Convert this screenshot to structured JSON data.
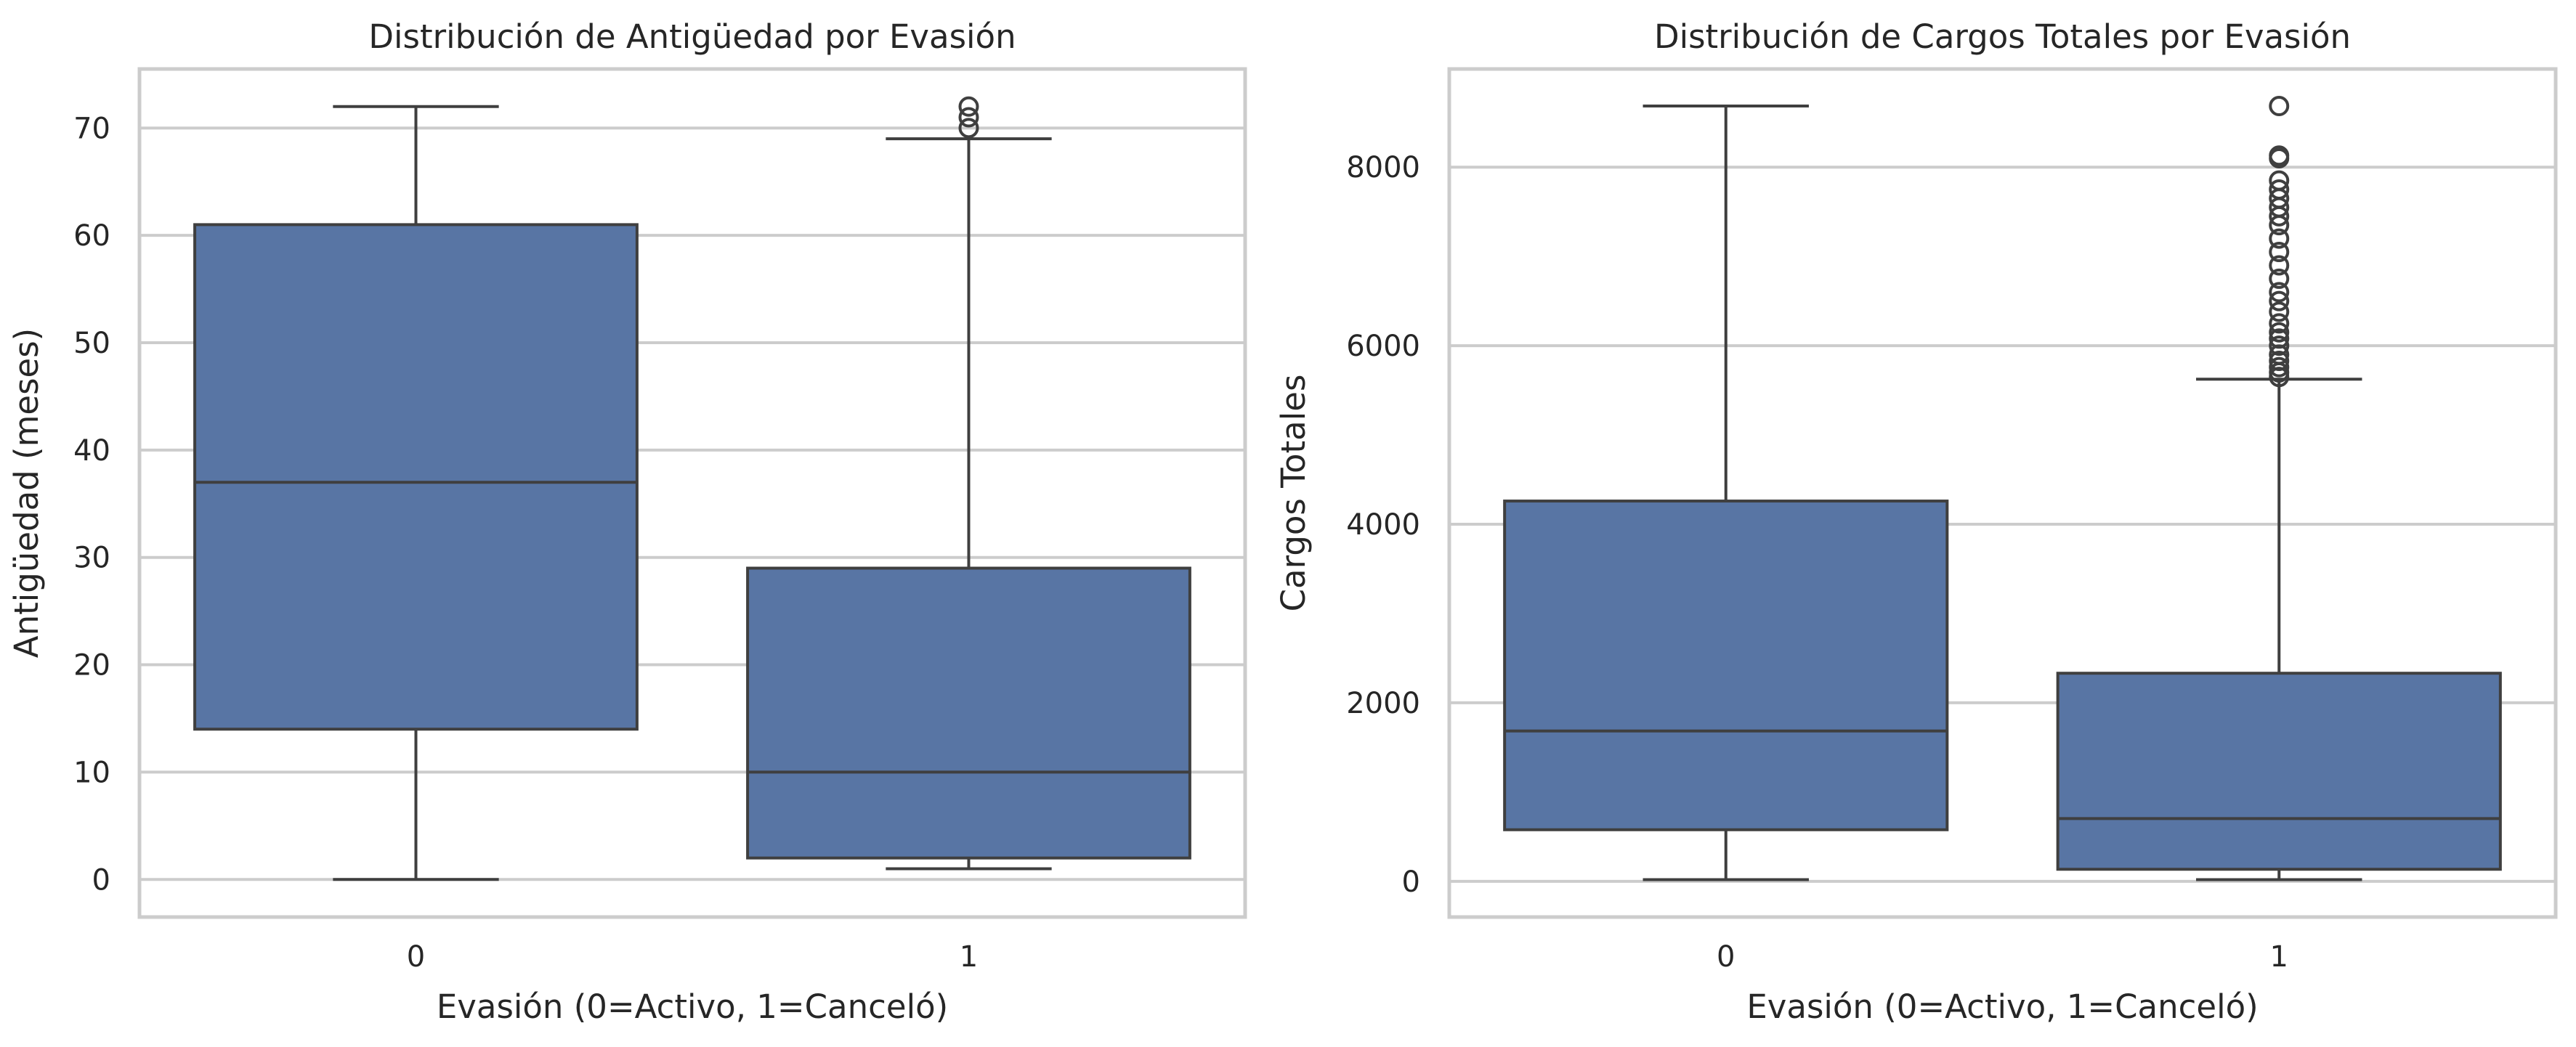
{
  "chart_data": [
    {
      "type": "boxplot",
      "title": "Distribución de Antigüedad por Evasión",
      "xlabel": "Evasión (0=Activo, 1=Canceló)",
      "ylabel": "Antigüedad (meses)",
      "ylim": [
        -3.5,
        75.5
      ],
      "yticks": [
        0,
        10,
        20,
        30,
        40,
        50,
        60,
        70
      ],
      "grid": true,
      "box_color": "#5875a4",
      "categories": [
        "0",
        "1"
      ],
      "boxes": [
        {
          "category": "0",
          "whislo": 0,
          "q1": 14,
          "med": 37,
          "q3": 61,
          "whishi": 72,
          "fliers": []
        },
        {
          "category": "1",
          "whislo": 1,
          "q1": 2,
          "med": 10,
          "q3": 29,
          "whishi": 69,
          "fliers": [
            70,
            71,
            72
          ]
        }
      ]
    },
    {
      "type": "boxplot",
      "title": "Distribución de Cargos Totales por Evasión",
      "xlabel": "Evasión (0=Activo, 1=Canceló)",
      "ylabel": "Cargos Totales",
      "ylim": [
        -400,
        9100
      ],
      "yticks": [
        0,
        2000,
        4000,
        6000,
        8000
      ],
      "grid": true,
      "box_color": "#5875a4",
      "categories": [
        "0",
        "1"
      ],
      "boxes": [
        {
          "category": "0",
          "whislo": 19,
          "q1": 578,
          "med": 1684,
          "q3": 4260,
          "whishi": 8685,
          "fliers": []
        },
        {
          "category": "1",
          "whislo": 19,
          "q1": 135,
          "med": 703,
          "q3": 2331,
          "whishi": 5625,
          "fliers": [
            5650,
            5700,
            5760,
            5830,
            5900,
            6000,
            6080,
            6150,
            6250,
            6380,
            6500,
            6600,
            6750,
            6900,
            7050,
            7200,
            7350,
            7450,
            7550,
            7650,
            7750,
            7850,
            8100,
            8130,
            8685
          ]
        }
      ]
    }
  ]
}
